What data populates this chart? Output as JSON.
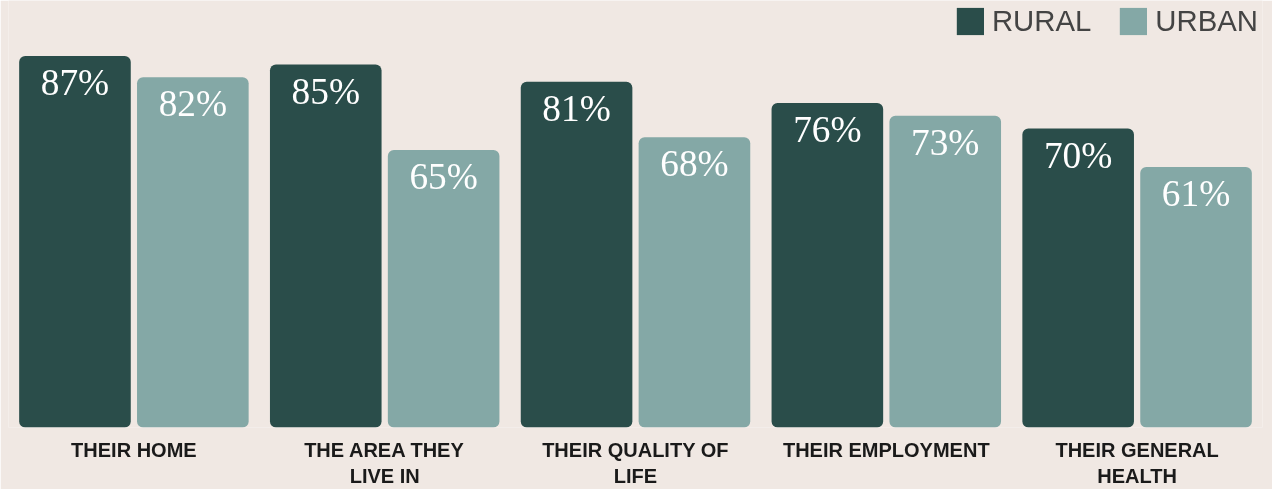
{
  "chart_data": {
    "type": "bar",
    "categories": [
      "THEIR HOME",
      "THE AREA THEY LIVE IN",
      "THEIR QUALITY OF LIFE",
      "THEIR EMPLOYMENT",
      "THEIR GENERAL HEALTH"
    ],
    "series": [
      {
        "name": "RURAL",
        "color": "#2a4d4a",
        "values": [
          87,
          85,
          81,
          76,
          70
        ],
        "value_labels": [
          "87%",
          "85%",
          "81%",
          "76%",
          "70%"
        ]
      },
      {
        "name": "URBAN",
        "color": "#84a8a6",
        "values": [
          82,
          65,
          68,
          73,
          61
        ],
        "value_labels": [
          "82%",
          "65%",
          "68%",
          "73%",
          "61%"
        ]
      }
    ],
    "ylim": [
      0,
      100
    ],
    "legend": "top right",
    "grid": false
  }
}
